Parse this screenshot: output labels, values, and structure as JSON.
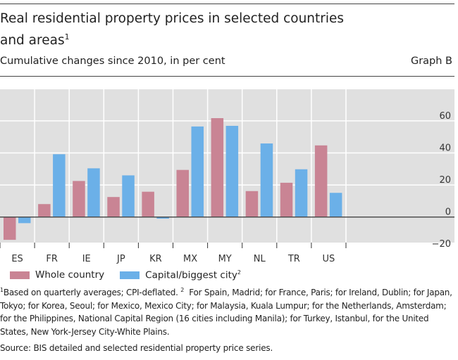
{
  "header": {
    "title": "Real residential property prices in selected countries and areas",
    "title_sup": "1",
    "subtitle": "Cumulative changes since 2010, in per cent",
    "graph_id": "Graph B"
  },
  "colors": {
    "whole_country": "#c98494",
    "capital": "#6bb0e8",
    "plot_bg": "#e0e0e0"
  },
  "chart_data": {
    "type": "bar",
    "title": "Real residential property prices in selected countries and areas",
    "subtitle": "Cumulative changes since 2010, in per cent",
    "categories": [
      "ES",
      "FR",
      "IE",
      "JP",
      "KR",
      "MX",
      "MY",
      "NL",
      "TR",
      "US"
    ],
    "series": [
      {
        "name": "Whole country",
        "values": [
          -14.2,
          8.1,
          22.5,
          12.5,
          15.8,
          29.4,
          61.7,
          16.2,
          21.4,
          44.7
        ]
      },
      {
        "name": "Capital/biggest city",
        "name_sup": "2",
        "values": [
          -3.8,
          39.2,
          30.4,
          26.0,
          -1.0,
          56.5,
          56.9,
          45.9,
          29.8,
          15.1
        ]
      }
    ],
    "yticks": [
      -20,
      0,
      20,
      40,
      60
    ],
    "ylim": [
      -16,
      80
    ],
    "y_axis_side": "right",
    "grid": true,
    "legend": "bottom-left"
  },
  "footnotes": {
    "note1_mark": "1",
    "note1": "Based on quarterly averages; CPI-deflated.",
    "note2_mark": "2",
    "note2": "For Spain, Madrid; for France, Paris; for Ireland, Dublin; for Japan, Tokyo; for Korea, Seoul; for Mexico, Mexico City; for Malaysia, Kuala Lumpur; for the Netherlands, Amsterdam; for the Philippines, National Capital Region (16 cities including Manila); for Turkey, Istanbul, for the United States, New York-Jersey City-White Plains."
  },
  "source": "Source: BIS detailed and selected residential property price series."
}
